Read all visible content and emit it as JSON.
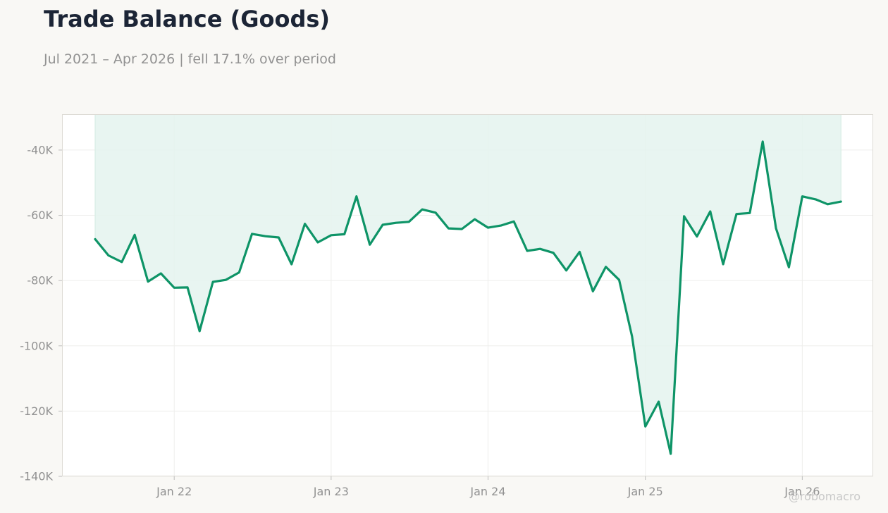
{
  "chart_data": {
    "type": "area",
    "title": "Trade Balance (Goods)",
    "subtitle": "Jul 2021 – Apr 2026 | fell 17.1% over period",
    "xlabel": "",
    "ylabel": "",
    "xlim": [
      "2021-04-15",
      "2026-06-15"
    ],
    "ylim": [
      -140000,
      -29000
    ],
    "yticks": [
      -40000,
      -60000,
      -80000,
      -100000,
      -120000,
      -140000
    ],
    "ytick_labels": [
      "-40K",
      "-60K",
      "-80K",
      "-100K",
      "-120K",
      "-140K"
    ],
    "xticks": [
      "2022-01-01",
      "2023-01-01",
      "2024-01-01",
      "2025-01-01",
      "2026-01-01"
    ],
    "xtick_labels": [
      "Jan 22",
      "Jan 23",
      "Jan 24",
      "Jan 25",
      "Jan 26"
    ],
    "grid": true,
    "fill": "above-line",
    "colors": {
      "line": "#0e9467",
      "fill": "#e4f3ee"
    },
    "watermark": "@robomacro",
    "series": [
      {
        "x": [
          "2021-07-01",
          "2021-08-01",
          "2021-09-01",
          "2021-10-01",
          "2021-11-01",
          "2021-12-01",
          "2022-01-01",
          "2022-02-01",
          "2022-03-01",
          "2022-04-01",
          "2022-05-01",
          "2022-06-01",
          "2022-07-01",
          "2022-08-01",
          "2022-09-01",
          "2022-10-01",
          "2022-11-01",
          "2022-12-01",
          "2023-01-01",
          "2023-02-01",
          "2023-03-01",
          "2023-04-01",
          "2023-05-01",
          "2023-06-01",
          "2023-07-01",
          "2023-08-01",
          "2023-09-01",
          "2023-10-01",
          "2023-11-01",
          "2023-12-01",
          "2024-01-01",
          "2024-02-01",
          "2024-03-01",
          "2024-04-01",
          "2024-05-01",
          "2024-06-01",
          "2024-07-01",
          "2024-08-01",
          "2024-09-01",
          "2024-10-01",
          "2024-11-01",
          "2024-12-01",
          "2025-01-01",
          "2025-02-01",
          "2025-03-01",
          "2025-04-01",
          "2025-05-01",
          "2025-06-01",
          "2025-07-01",
          "2025-08-01",
          "2025-09-01",
          "2025-10-01",
          "2025-11-01",
          "2025-12-01",
          "2026-01-01",
          "2026-02-01",
          "2026-03-01",
          "2026-04-01"
        ],
        "values": [
          -67300,
          -72300,
          -74300,
          -66000,
          -80300,
          -77800,
          -82200,
          -82100,
          -95500,
          -80400,
          -79800,
          -77500,
          -65700,
          -66400,
          -66800,
          -75000,
          -62600,
          -68300,
          -66100,
          -65800,
          -54200,
          -69000,
          -62900,
          -62300,
          -62000,
          -58200,
          -59200,
          -64000,
          -64200,
          -61200,
          -63800,
          -63100,
          -61900,
          -70900,
          -70300,
          -71500,
          -76900,
          -71200,
          -83300,
          -75800,
          -79800,
          -97100,
          -124700,
          -117100,
          -133100,
          -60300,
          -66500,
          -58800,
          -75000,
          -59600,
          -59300,
          -37400,
          -64000,
          -75900,
          -54200,
          -55100,
          -56600,
          -55800
        ]
      }
    ]
  }
}
